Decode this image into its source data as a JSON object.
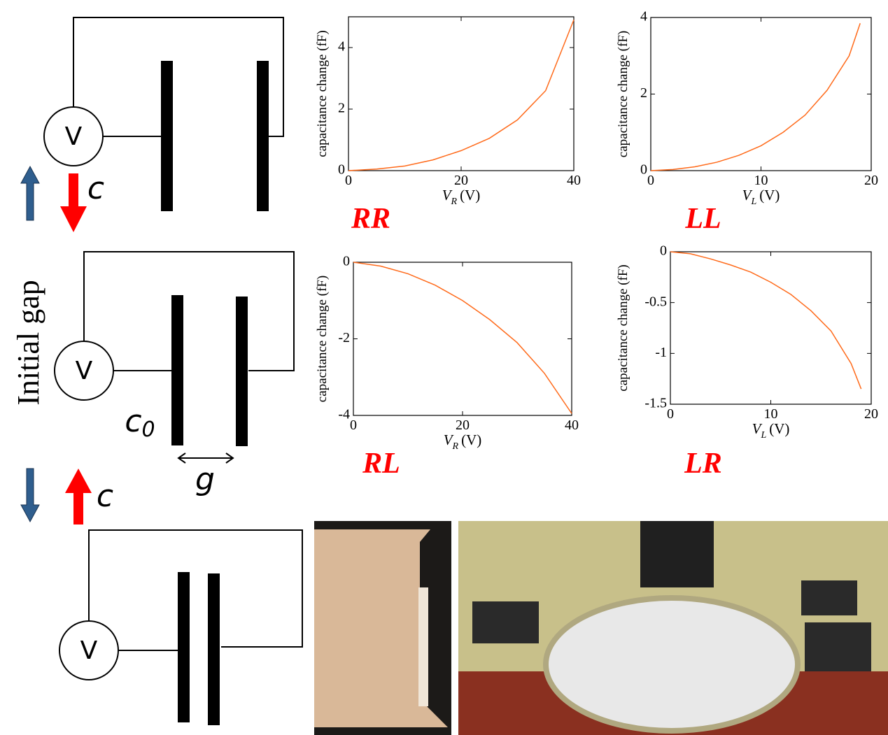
{
  "chart_data": [
    {
      "type": "line",
      "label": "RR",
      "y_label": "capacitance change (fF)",
      "x_label": {
        "symbol": "V",
        "subscript": "R",
        "unit": "(V)"
      },
      "x": [
        0,
        5,
        10,
        15,
        20,
        25,
        30,
        35,
        40
      ],
      "values": [
        0,
        0.05,
        0.15,
        0.35,
        0.65,
        1.05,
        1.65,
        2.6,
        4.9
      ],
      "color": "#ff6a1a",
      "xlim": [
        0,
        40
      ],
      "ylim": [
        0,
        5
      ],
      "xticks": [
        0,
        20,
        40
      ],
      "yticks": [
        0,
        2,
        4
      ]
    },
    {
      "type": "line",
      "label": "LL",
      "y_label": "capacitance change (fF)",
      "x_label": {
        "symbol": "V",
        "subscript": "L",
        "unit": "(V)"
      },
      "x": [
        0,
        2,
        4,
        6,
        8,
        10,
        12,
        14,
        16,
        18,
        19
      ],
      "values": [
        0,
        0.03,
        0.1,
        0.22,
        0.4,
        0.65,
        1.0,
        1.45,
        2.1,
        3.0,
        3.85
      ],
      "color": "#ff6a1a",
      "xlim": [
        0,
        20
      ],
      "ylim": [
        0,
        4
      ],
      "xticks": [
        0,
        10,
        20
      ],
      "yticks": [
        0,
        2,
        4
      ]
    },
    {
      "type": "line",
      "label": "RL",
      "y_label": "capacitance change (fF)",
      "x_label": {
        "symbol": "V",
        "subscript": "R",
        "unit": "(V)"
      },
      "x": [
        0,
        5,
        10,
        15,
        20,
        25,
        30,
        35,
        40
      ],
      "values": [
        0,
        -0.1,
        -0.3,
        -0.6,
        -1.0,
        -1.5,
        -2.1,
        -2.9,
        -3.95
      ],
      "color": "#ff6a1a",
      "xlim": [
        0,
        40
      ],
      "ylim": [
        -4,
        0
      ],
      "xticks": [
        0,
        20,
        40
      ],
      "yticks": [
        -4,
        -2,
        0
      ]
    },
    {
      "type": "line",
      "label": "LR",
      "y_label": "capacitance change (fF)",
      "x_label": {
        "symbol": "V",
        "subscript": "L",
        "unit": "(V)"
      },
      "x": [
        0,
        2,
        4,
        6,
        8,
        10,
        12,
        14,
        16,
        18,
        19
      ],
      "values": [
        0,
        -0.02,
        -0.07,
        -0.13,
        -0.2,
        -0.3,
        -0.42,
        -0.58,
        -0.78,
        -1.1,
        -1.35
      ],
      "color": "#ff6a1a",
      "xlim": [
        0,
        20
      ],
      "ylim": [
        -1.5,
        0
      ],
      "xticks": [
        0,
        10,
        20
      ],
      "yticks": [
        -1.5,
        -1,
        -0.5,
        0
      ]
    }
  ],
  "diagram": {
    "sources": [
      "V",
      "V",
      "V"
    ],
    "change_labels": [
      "c",
      "c"
    ],
    "side_label": "Initial gap",
    "initial_capacitance": {
      "symbol": "c",
      "subscript": "0"
    },
    "gap_label": "g"
  }
}
